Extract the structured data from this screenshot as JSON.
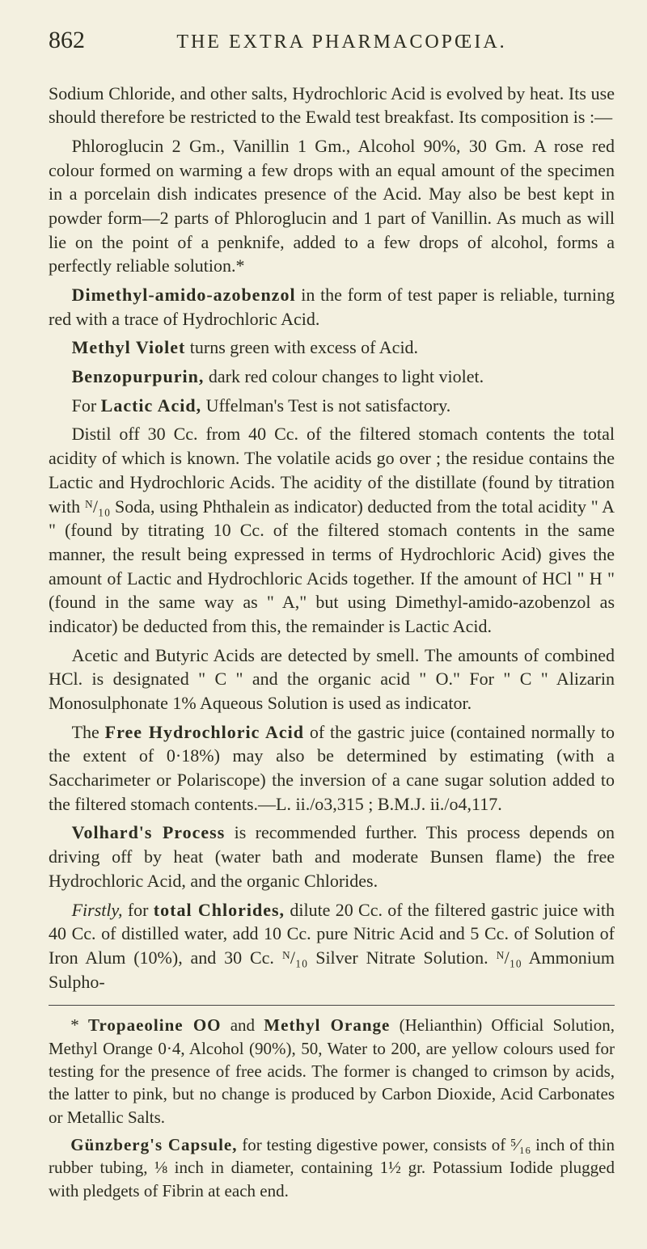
{
  "header": {
    "page_number": "862",
    "running_title": "THE EXTRA PHARMACOPŒIA."
  },
  "paragraphs": {
    "p1": "Sodium Chloride, and other salts, Hydrochloric Acid is evolved by heat. Its use should therefore be restricted to the Ewald test breakfast. Its composition is :—",
    "p2": "Phloroglucin 2 Gm., Vanillin 1 Gm., Alcohol 90%, 30 Gm. A rose red colour formed on warming a few drops with an equal amount of the specimen in a porcelain dish indicates presence of the Acid. May also be best kept in powder form—2 parts of Phloroglucin and 1 part of Vanillin. As much as will lie on the point of a penknife, added to a few drops of alcohol, forms a perfectly reliable solution.*",
    "p3_lead": "Dimethyl-amido-azobenzol",
    "p3_rest": " in the form of test paper is reliable, turning red with a trace of Hydrochloric Acid.",
    "p4_lead": "Methyl Violet",
    "p4_rest": " turns green with excess of Acid.",
    "p5_lead": "Benzopurpurin,",
    "p5_rest": " dark red colour changes to light violet.",
    "p6_a": "For ",
    "p6_lead": "Lactic Acid,",
    "p6_rest": " Uffelman's Test is not satisfactory.",
    "p7": "Distil off 30 Cc. from 40 Cc. of the filtered stomach contents the total acidity of which is known. The volatile acids go over ; the residue contains the Lactic and Hydrochloric Acids. The acidity of the distillate (found by titration with ᴺ/₁₀ Soda, using Phthalein as indicator) deducted from the total acidity \" A \" (found by titrating 10 Cc. of the filtered stomach contents in the same manner, the result being expressed in terms of Hydrochloric Acid) gives the amount of Lactic and Hydrochloric Acids together. If the amount of HCl \" H \" (found in the same way as \" A,\" but using Dimethyl-amido-azobenzol as indicator) be deducted from this, the remainder is Lactic Acid.",
    "p8": "Acetic and Butyric Acids are detected by smell. The amounts of combined HCl. is designated \" C \" and the organic acid \" O.\" For \" C \" Alizarin Monosulphonate 1% Aqueous Solution is used as indicator.",
    "p9_a": "The ",
    "p9_lead": "Free Hydrochloric Acid",
    "p9_rest": " of the gastric juice (contained normally to the extent of 0·18%) may also be determined by estimating (with a Saccharimeter or Polariscope) the inversion of a cane sugar solution added to the filtered stomach contents.—L. ii./o3,315 ; B.M.J. ii./o4,117.",
    "p10_lead": "Volhard's Process",
    "p10_rest": " is recommended further. This process depends on driving off by heat (water bath and moderate Bunsen flame) the free Hydrochloric Acid, and the organic Chlorides.",
    "p11_it": "Firstly,",
    "p11_a": " for ",
    "p11_lead": "total Chlorides,",
    "p11_rest": " dilute 20 Cc. of the filtered gastric juice with 40 Cc. of distilled water, add 10 Cc. pure Nitric Acid and 5 Cc. of Solution of Iron Alum (10%), and 30 Cc. ᴺ/₁₀ Silver Nitrate Solution. ᴺ/₁₀ Ammonium Sulpho-"
  },
  "footnote": {
    "f1_a": "* ",
    "f1_lead": "Tropaeoline OO",
    "f1_mid": " and ",
    "f1_lead2": "Methyl Orange",
    "f1_rest": " (Helianthin) Official Solution, Methyl Orange 0·4, Alcohol (90%), 50, Water to 200, are yellow colours used for testing for the presence of free acids. The former is changed to crimson by acids, the latter to pink, but no change is produced by Carbon Dioxide, Acid Carbonates or Metallic Salts.",
    "f2_lead": "Günzberg's Capsule,",
    "f2_rest": " for testing digestive power, consists of ⁵⁄₁₆ inch of thin rubber tubing, ⅛ inch in diameter, containing 1½ gr. Potassium Iodide plugged with pledgets of Fibrin at each end."
  }
}
